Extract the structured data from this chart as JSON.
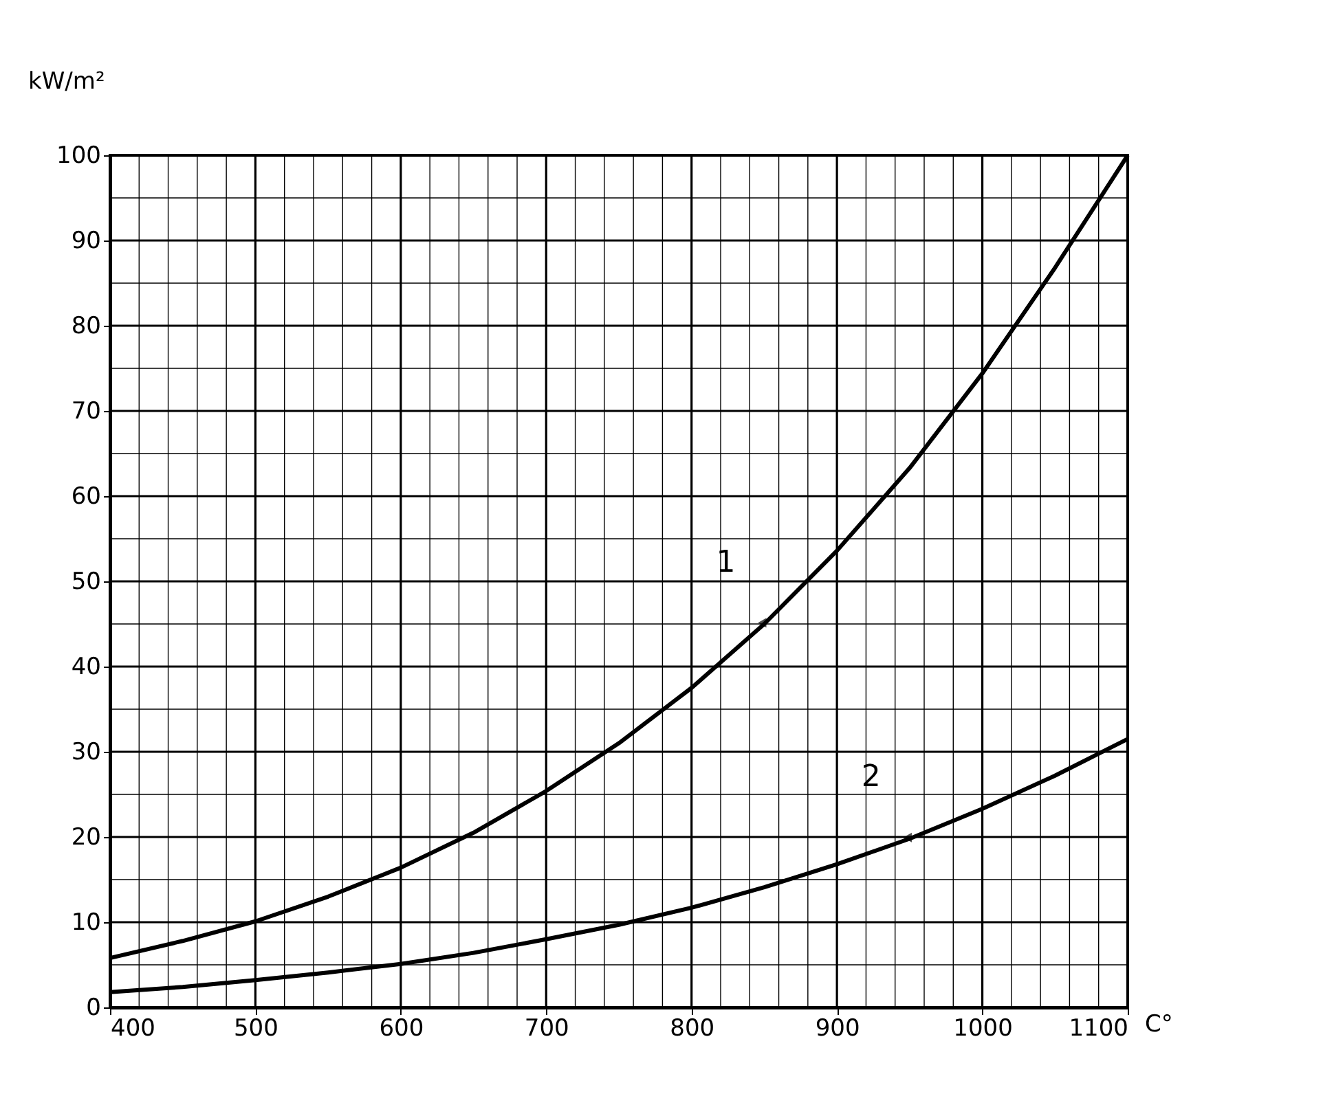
{
  "chart_data": {
    "type": "line",
    "xlabel": "C°",
    "ylabel": "kW/m²",
    "x": [
      400,
      450,
      500,
      550,
      600,
      650,
      700,
      750,
      800,
      850,
      900,
      950,
      1000,
      1050,
      1100
    ],
    "series": [
      {
        "color": "#000000",
        "values": [
          5.8,
          7.8,
          10.1,
          13.0,
          16.4,
          20.5,
          25.4,
          31.0,
          37.5,
          45.0,
          53.6,
          63.3,
          74.4,
          86.8,
          100
        ]
      },
      {
        "color": "#000000",
        "values": [
          1.8,
          2.4,
          3.2,
          4.1,
          5.1,
          6.4,
          8.0,
          9.7,
          11.7,
          14.1,
          16.8,
          19.8,
          23.3,
          27.2,
          31.5
        ]
      }
    ],
    "annotations": [
      {
        "text": "1",
        "x": 850,
        "y": 45.0
      },
      {
        "text": "2",
        "x": 950,
        "y": 19.8
      }
    ],
    "xlim": [
      400,
      1100
    ],
    "ylim": [
      0,
      100
    ],
    "xticks": [
      400,
      {
        "value": 420,
        "label": null
      },
      {
        "value": 440,
        "label": null
      },
      {
        "value": 460,
        "label": null
      },
      {
        "value": 480,
        "label": null
      },
      500,
      {
        "value": 520,
        "label": null
      },
      {
        "value": 540,
        "label": null
      },
      {
        "value": 560,
        "label": null
      },
      {
        "value": 580,
        "label": null
      },
      600,
      {
        "value": 620,
        "label": null
      },
      {
        "value": 640,
        "label": null
      },
      {
        "value": 660,
        "label": null
      },
      {
        "value": 680,
        "label": null
      },
      700,
      {
        "value": 720,
        "label": null
      },
      {
        "value": 740,
        "label": null
      },
      {
        "value": 760,
        "label": null
      },
      {
        "value": 780,
        "label": null
      },
      800,
      {
        "value": 820,
        "label": null
      },
      {
        "value": 840,
        "label": null
      },
      {
        "value": 860,
        "label": null
      },
      {
        "value": 880,
        "label": null
      },
      900,
      {
        "value": 920,
        "label": null
      },
      {
        "value": 940,
        "label": null
      },
      {
        "value": 960,
        "label": null
      },
      {
        "value": 980,
        "label": null
      },
      1000,
      {
        "value": 1020,
        "label": null
      },
      {
        "value": 1040,
        "label": null
      },
      {
        "value": 1060,
        "label": null
      },
      {
        "value": 1080,
        "label": null
      },
      1100
    ],
    "yticks": [
      0,
      {
        "value": 5,
        "label": null
      },
      10,
      {
        "value": 15,
        "label": null
      },
      20,
      {
        "value": 25,
        "label": null
      },
      30,
      {
        "value": 35,
        "label": null
      },
      40,
      {
        "value": 45,
        "label": null
      },
      50,
      {
        "value": 55,
        "label": null
      },
      60,
      {
        "value": 65,
        "label": null
      },
      70,
      {
        "value": 75,
        "label": null
      },
      80,
      {
        "value": 85,
        "label": null
      },
      90,
      {
        "value": 95,
        "label": null
      },
      100
    ],
    "grid": true,
    "legend": false,
    "marker": "none",
    "line_style": "solid"
  }
}
